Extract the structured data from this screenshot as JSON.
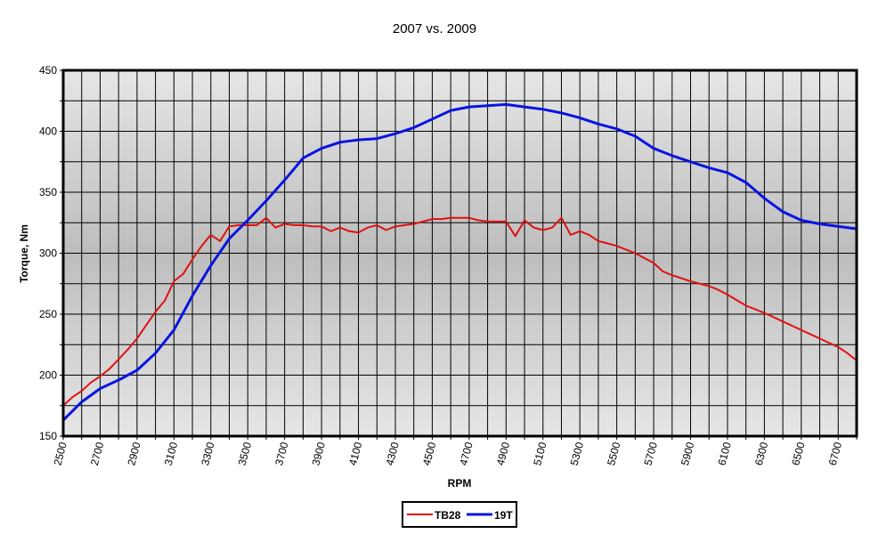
{
  "chart_data": {
    "type": "line",
    "title": "2007 vs. 2009",
    "xlabel": "RPM",
    "ylabel": "Torque, Nm",
    "xlim": [
      2500,
      6800
    ],
    "ylim": [
      150,
      450
    ],
    "y_ticks": [
      "150",
      "200",
      "250",
      "300",
      "350",
      "400",
      "450"
    ],
    "x_ticks": [
      "2500",
      "2700",
      "2900",
      "3100",
      "3300",
      "3500",
      "3700",
      "3900",
      "4100",
      "4300",
      "4500",
      "4700",
      "4900",
      "5100",
      "5300",
      "5500",
      "5700",
      "5900",
      "6100",
      "6300",
      "6500",
      "6700"
    ],
    "grid": true,
    "legend_position": "bottom-center",
    "series": [
      {
        "name": "TB28",
        "color": "#e01010",
        "x": [
          2500,
          2550,
          2600,
          2650,
          2700,
          2750,
          2800,
          2850,
          2900,
          2950,
          3000,
          3050,
          3100,
          3150,
          3200,
          3250,
          3300,
          3350,
          3400,
          3450,
          3500,
          3550,
          3600,
          3650,
          3700,
          3750,
          3800,
          3850,
          3900,
          3950,
          4000,
          4050,
          4100,
          4150,
          4200,
          4250,
          4300,
          4350,
          4400,
          4450,
          4500,
          4550,
          4600,
          4650,
          4700,
          4750,
          4800,
          4850,
          4900,
          4950,
          5000,
          5050,
          5100,
          5150,
          5200,
          5250,
          5300,
          5350,
          5400,
          5450,
          5500,
          5600,
          5700,
          5750,
          5800,
          5900,
          6000,
          6050,
          6100,
          6200,
          6300,
          6400,
          6500,
          6600,
          6700,
          6750,
          6800
        ],
        "y": [
          175,
          182,
          187,
          194,
          199,
          205,
          213,
          221,
          230,
          241,
          252,
          261,
          277,
          283,
          295,
          306,
          315,
          310,
          322,
          323,
          323,
          323,
          329,
          321,
          324,
          323,
          323,
          322,
          322,
          318,
          321,
          318,
          317,
          321,
          323,
          319,
          322,
          323,
          324,
          326,
          328,
          328,
          329,
          329,
          329,
          327,
          326,
          326,
          326,
          314,
          327,
          321,
          319,
          321,
          329,
          315,
          318,
          315,
          310,
          308,
          306,
          300,
          292,
          285,
          282,
          277,
          273,
          270,
          266,
          257,
          251,
          244,
          237,
          230,
          223,
          218,
          212
        ]
      },
      {
        "name": "19T",
        "color": "#0a14e0",
        "x": [
          2500,
          2600,
          2700,
          2800,
          2900,
          3000,
          3100,
          3200,
          3300,
          3400,
          3500,
          3600,
          3700,
          3800,
          3900,
          4000,
          4100,
          4200,
          4300,
          4400,
          4500,
          4600,
          4700,
          4800,
          4900,
          5000,
          5100,
          5200,
          5300,
          5400,
          5500,
          5600,
          5700,
          5800,
          5900,
          6000,
          6100,
          6200,
          6300,
          6400,
          6500,
          6600,
          6700,
          6800
        ],
        "y": [
          163,
          178,
          189,
          196,
          204,
          218,
          237,
          265,
          290,
          312,
          327,
          343,
          360,
          378,
          386,
          391,
          393,
          394,
          398,
          403,
          410,
          417,
          420,
          421,
          422,
          420,
          418,
          415,
          411,
          406,
          402,
          396,
          386,
          380,
          375,
          370,
          366,
          358,
          345,
          334,
          327,
          324,
          322,
          320
        ]
      }
    ]
  }
}
